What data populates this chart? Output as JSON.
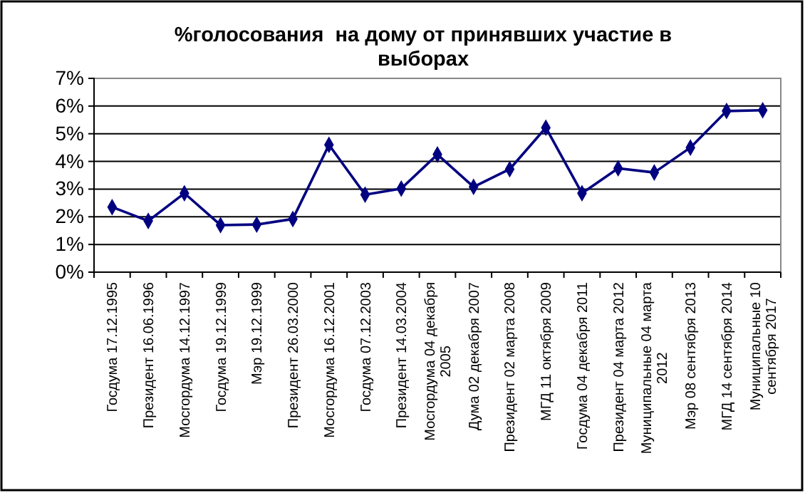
{
  "chart_data": {
    "type": "line",
    "title": "%голосования  на дому от принявших участие в выборах",
    "categories": [
      "Госдума 17.12.1995",
      "Президент 16.06.1996",
      "Мосгордума 14.12.1997",
      "Госдума 19.12.1999",
      "Мэр 19.12.1999",
      "Президент 26.03.2000",
      "Мосгордума 16.12.2001",
      "Госдума 07.12.2003",
      "Президент 14.03.2004",
      "Мосгордума 04 декабря 2005",
      "Дума 02 декабря 2007",
      "Президент 02 марта 2008",
      "МГД 11 октября 2009",
      "Госдума 04 декабря 2011",
      "Президент 04 марта 2012",
      "Муниципальные 04 марта 2012",
      "Мэр 08 сентября 2013",
      "МГД 14 сентября 2014",
      "Муниципальные 10 сентября 2017"
    ],
    "series": [
      {
        "color": "#000080",
        "values": [
          2.35,
          1.85,
          2.85,
          1.7,
          1.72,
          1.92,
          4.6,
          2.8,
          3.02,
          4.25,
          3.08,
          3.72,
          5.22,
          2.85,
          3.75,
          3.6,
          4.5,
          5.82,
          5.85
        ]
      }
    ],
    "ylim": [
      0,
      7
    ],
    "yticks": [
      {
        "value": 0,
        "label": "0%"
      },
      {
        "value": 1,
        "label": "1%"
      },
      {
        "value": 2,
        "label": "2%"
      },
      {
        "value": 3,
        "label": "3%"
      },
      {
        "value": 4,
        "label": "4%"
      },
      {
        "value": 5,
        "label": "5%"
      },
      {
        "value": 6,
        "label": "6%"
      },
      {
        "value": 7,
        "label": "7%"
      }
    ],
    "grid": "y",
    "marker": "diamond",
    "line_style": "solid"
  }
}
